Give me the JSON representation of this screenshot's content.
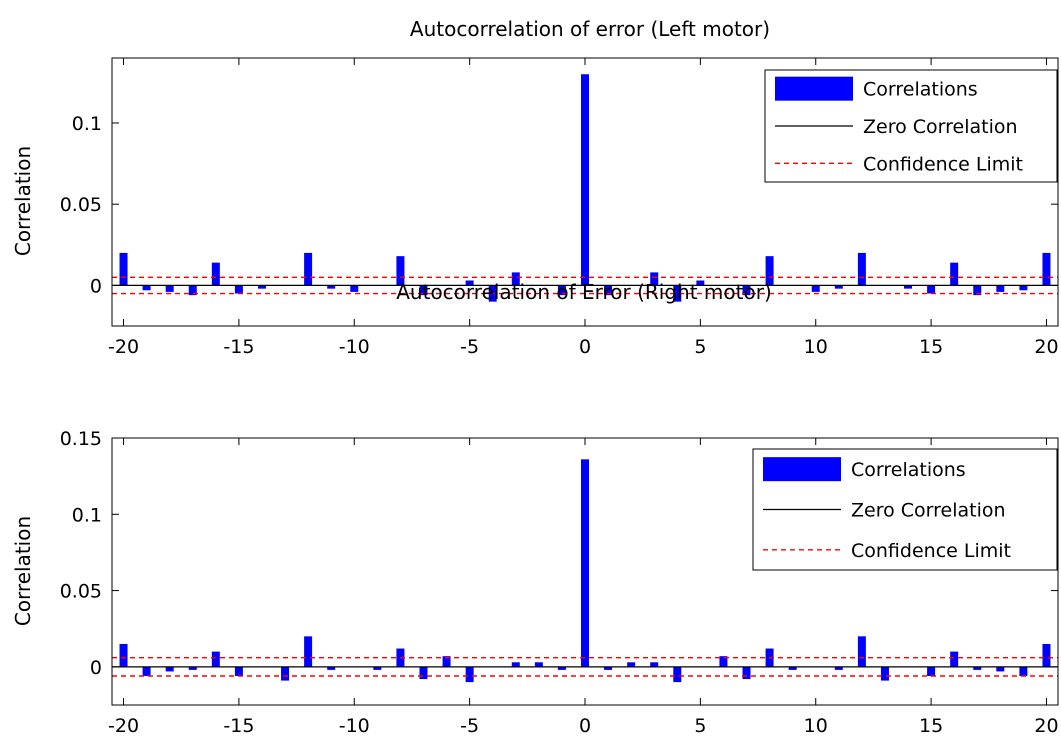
{
  "chart_data": [
    {
      "type": "bar",
      "title": "Autocorrelation of error (Left motor)",
      "xlabel": "",
      "ylabel": "Correlation",
      "xlim": [
        -20.5,
        20.5
      ],
      "ylim": [
        -0.025,
        0.14
      ],
      "xticks": [
        -20,
        -15,
        -10,
        -5,
        0,
        5,
        10,
        15,
        20
      ],
      "yticks": [
        0,
        0.05,
        0.1
      ],
      "ytick_labels": [
        "0",
        "0.05",
        "0.1"
      ],
      "grid": false,
      "legend_position": "top-right",
      "legend": [
        "Correlations",
        "Zero Correlation",
        "Confidence Limit"
      ],
      "confidence_limit": 0.005,
      "colors": {
        "bars": "#0000ff",
        "zero_line": "#000000",
        "confidence": "#ff0000"
      },
      "lags": [
        -20,
        -19,
        -18,
        -17,
        -16,
        -15,
        -14,
        -13,
        -12,
        -11,
        -10,
        -9,
        -8,
        -7,
        -6,
        -5,
        -4,
        -3,
        -2,
        -1,
        0,
        1,
        2,
        3,
        4,
        5,
        6,
        7,
        8,
        9,
        10,
        11,
        12,
        13,
        14,
        15,
        16,
        17,
        18,
        19,
        20
      ],
      "values": [
        0.02,
        -0.003,
        -0.004,
        -0.006,
        0.014,
        -0.005,
        -0.002,
        0.0,
        0.02,
        -0.002,
        -0.004,
        0.0,
        0.018,
        -0.006,
        0.0,
        0.003,
        -0.01,
        0.008,
        0.0,
        -0.006,
        0.13,
        -0.006,
        0.0,
        0.008,
        -0.01,
        0.003,
        0.0,
        -0.006,
        0.018,
        0.0,
        -0.004,
        -0.002,
        0.02,
        0.0,
        -0.002,
        -0.005,
        0.014,
        -0.006,
        -0.004,
        -0.003,
        0.02
      ]
    },
    {
      "type": "bar",
      "title": "Autocorrelation of Error (Right motor)",
      "xlabel": "",
      "ylabel": "Correlation",
      "xlim": [
        -20.5,
        20.5
      ],
      "ylim": [
        -0.025,
        0.15
      ],
      "xticks": [
        -20,
        -15,
        -10,
        -5,
        0,
        5,
        10,
        15,
        20
      ],
      "yticks": [
        0,
        0.05,
        0.1,
        0.15
      ],
      "ytick_labels": [
        "0",
        "0.05",
        "0.1",
        "0.15"
      ],
      "grid": false,
      "legend_position": "top-right",
      "legend": [
        "Correlations",
        "Zero Correlation",
        "Confidence Limit"
      ],
      "confidence_limit": 0.006,
      "colors": {
        "bars": "#0000ff",
        "zero_line": "#000000",
        "confidence": "#ff0000"
      },
      "lags": [
        -20,
        -19,
        -18,
        -17,
        -16,
        -15,
        -14,
        -13,
        -12,
        -11,
        -10,
        -9,
        -8,
        -7,
        -6,
        -5,
        -4,
        -3,
        -2,
        -1,
        0,
        1,
        2,
        3,
        4,
        5,
        6,
        7,
        8,
        9,
        10,
        11,
        12,
        13,
        14,
        15,
        16,
        17,
        18,
        19,
        20
      ],
      "values": [
        0.015,
        -0.006,
        -0.003,
        -0.002,
        0.01,
        -0.006,
        0.0,
        -0.009,
        0.02,
        -0.002,
        0.0,
        -0.002,
        0.012,
        -0.008,
        0.007,
        -0.01,
        0.0,
        0.003,
        0.003,
        -0.002,
        0.136,
        -0.002,
        0.003,
        0.003,
        -0.01,
        0.0,
        0.007,
        -0.008,
        0.012,
        -0.002,
        0.0,
        -0.002,
        0.02,
        -0.009,
        0.0,
        -0.006,
        0.01,
        -0.002,
        -0.003,
        -0.006,
        0.015
      ]
    }
  ]
}
